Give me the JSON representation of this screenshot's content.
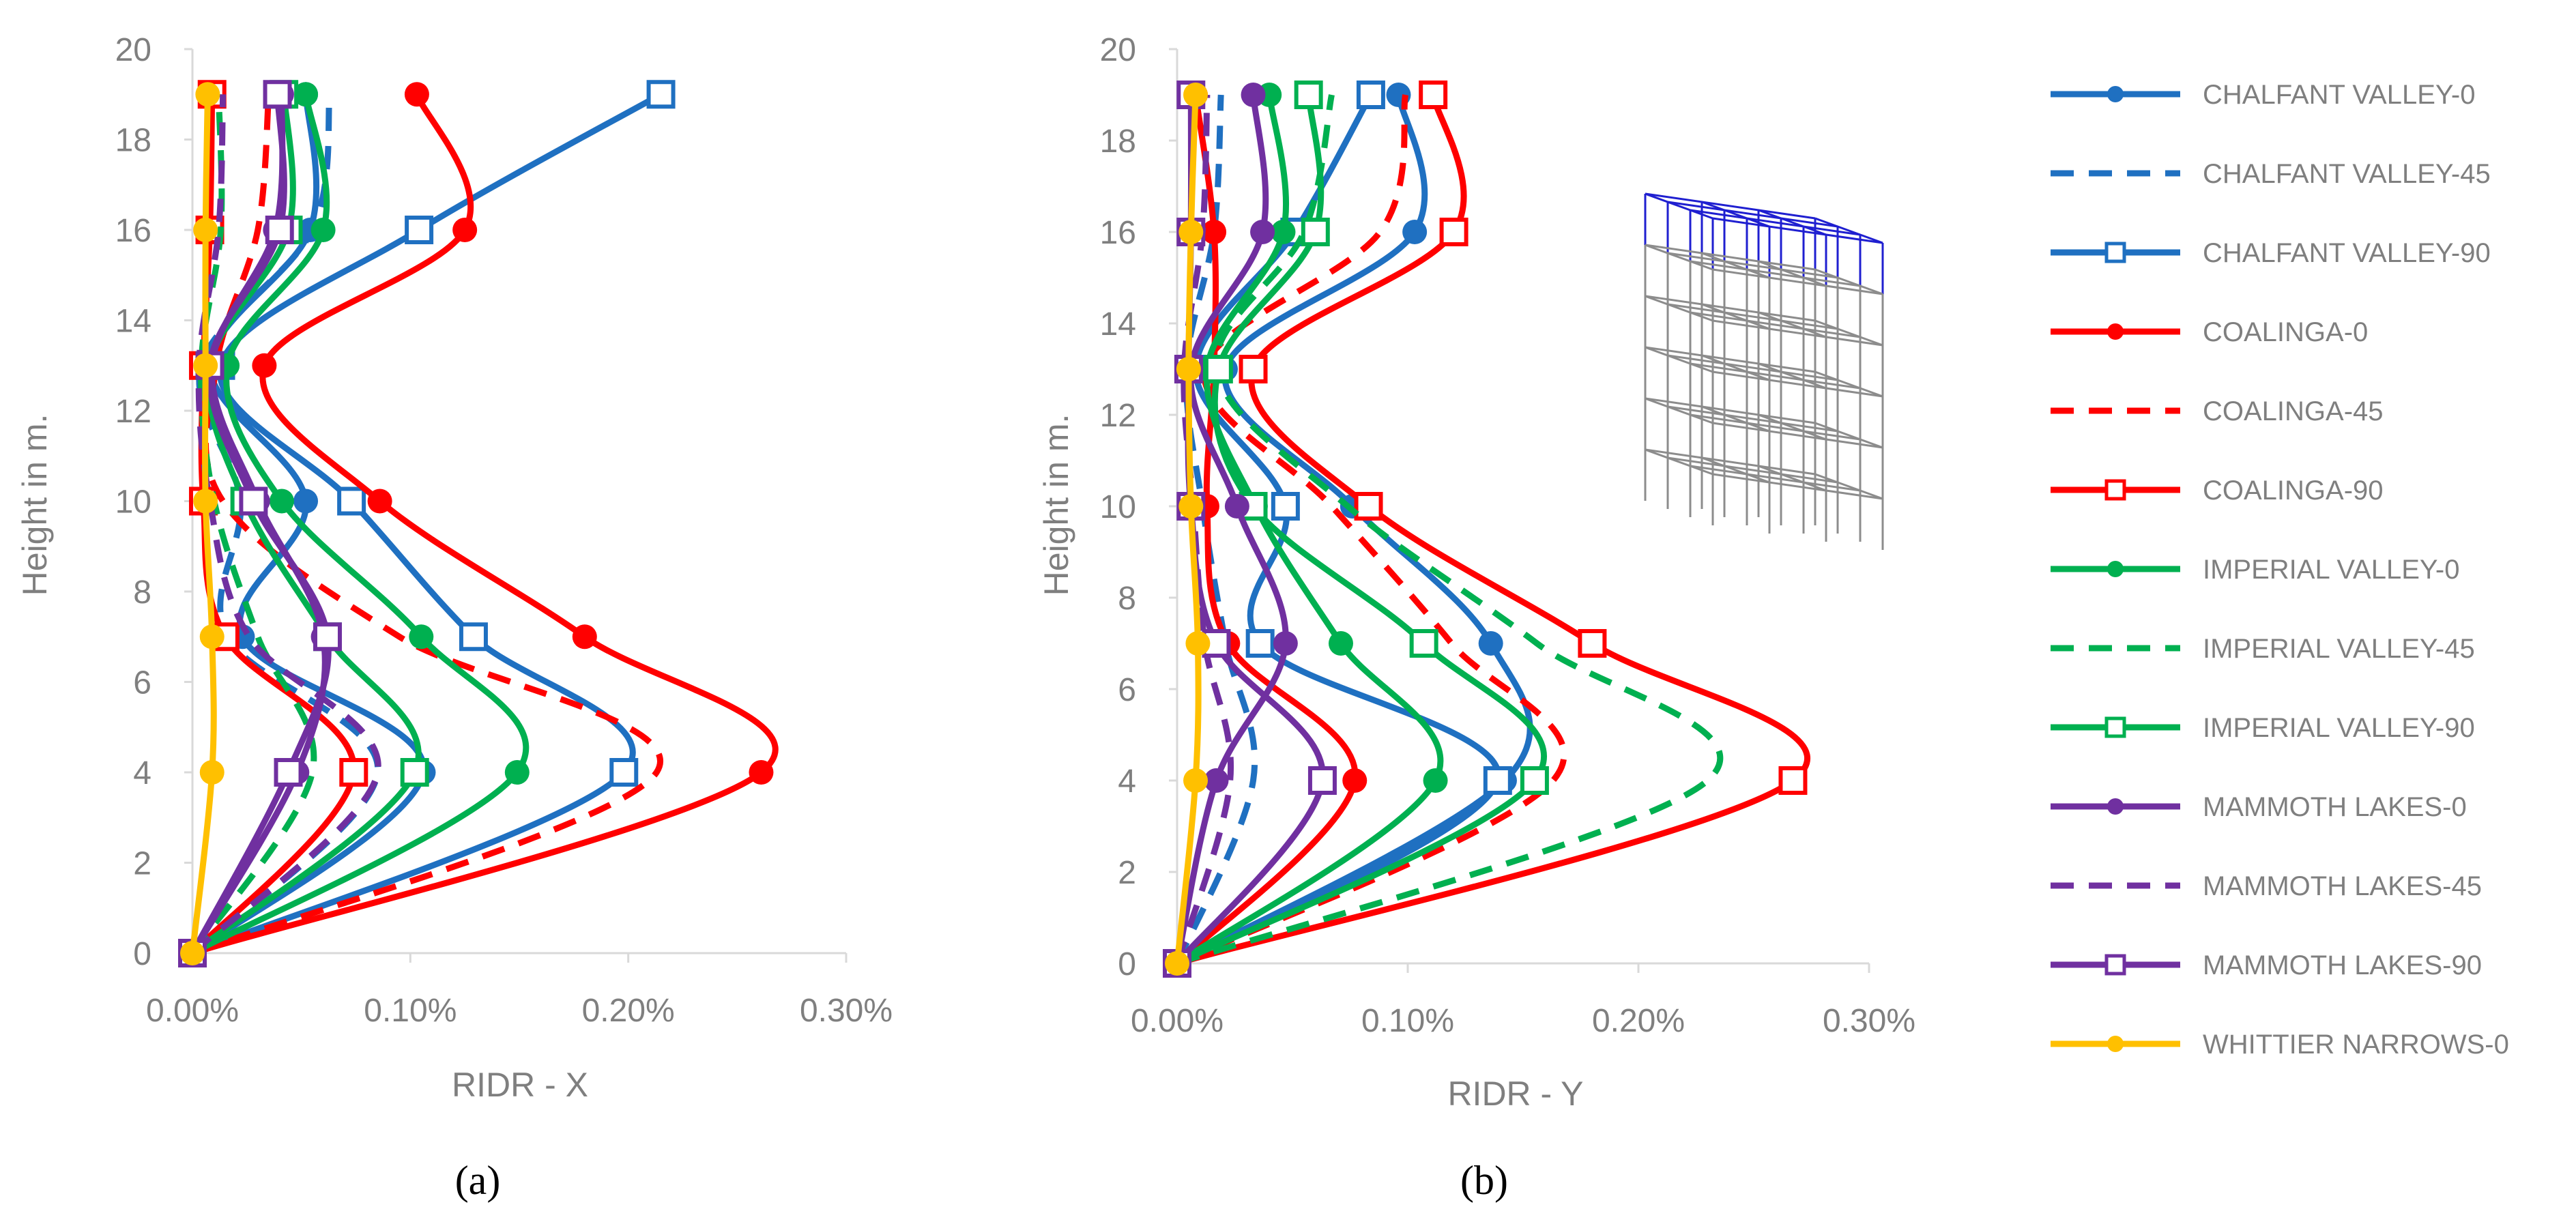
{
  "legend": [
    {
      "name": "CHALFANT VALLEY-0",
      "color": "#1f70c1",
      "dash": "solid",
      "marker": "circle"
    },
    {
      "name": "CHALFANT VALLEY-45",
      "color": "#1f70c1",
      "dash": "dashed",
      "marker": "none"
    },
    {
      "name": "CHALFANT VALLEY-90",
      "color": "#1f70c1",
      "dash": "solid",
      "marker": "square-open"
    },
    {
      "name": "COALINGA-0",
      "color": "#ff0000",
      "dash": "solid",
      "marker": "circle"
    },
    {
      "name": "COALINGA-45",
      "color": "#ff0000",
      "dash": "dashed",
      "marker": "none"
    },
    {
      "name": "COALINGA-90",
      "color": "#ff0000",
      "dash": "solid",
      "marker": "square-open"
    },
    {
      "name": "IMPERIAL VALLEY-0",
      "color": "#00b050",
      "dash": "solid",
      "marker": "circle"
    },
    {
      "name": "IMPERIAL VALLEY-45",
      "color": "#00b050",
      "dash": "dashed",
      "marker": "none"
    },
    {
      "name": "IMPERIAL VALLEY-90",
      "color": "#00b050",
      "dash": "solid",
      "marker": "square-open"
    },
    {
      "name": "MAMMOTH LAKES-0",
      "color": "#7030a0",
      "dash": "solid",
      "marker": "circle"
    },
    {
      "name": "MAMMOTH LAKES-45",
      "color": "#7030a0",
      "dash": "dashed",
      "marker": "none"
    },
    {
      "name": "MAMMOTH LAKES-90",
      "color": "#7030a0",
      "dash": "solid",
      "marker": "square-open"
    },
    {
      "name": "WHITTIER NARROWS-0",
      "color": "#ffc000",
      "dash": "solid",
      "marker": "circle"
    }
  ],
  "chart_data": [
    {
      "type": "line",
      "panel_label": "(a)",
      "xlabel": "RIDR - X",
      "ylabel": "Height in m.",
      "xlim": [
        0,
        0.3
      ],
      "ylim": [
        0,
        20
      ],
      "xticks": [
        0,
        0.1,
        0.2,
        0.3
      ],
      "xtick_labels": [
        "0.00%",
        "0.10%",
        "0.20%",
        "0.30%"
      ],
      "yticks": [
        0,
        2,
        4,
        6,
        8,
        10,
        12,
        14,
        16,
        18,
        20
      ],
      "y": [
        0,
        4,
        7,
        10,
        13,
        16,
        19
      ],
      "series": [
        {
          "name": "CHALFANT VALLEY-0",
          "x": [
            0,
            0.106,
            0.023,
            0.052,
            0.008,
            0.054,
            0.052
          ]
        },
        {
          "name": "CHALFANT VALLEY-45",
          "x": [
            0,
            0.085,
            0.016,
            0.022,
            0.004,
            0.055,
            0.063
          ]
        },
        {
          "name": "CHALFANT VALLEY-90",
          "x": [
            0,
            0.198,
            0.129,
            0.073,
            0.013,
            0.104,
            0.215
          ]
        },
        {
          "name": "COALINGA-0",
          "x": [
            0,
            0.261,
            0.18,
            0.086,
            0.033,
            0.125,
            0.103
          ]
        },
        {
          "name": "COALINGA-45",
          "x": [
            0,
            0.213,
            0.095,
            0.014,
            0.011,
            0.03,
            0.035
          ]
        },
        {
          "name": "COALINGA-90",
          "x": [
            0,
            0.074,
            0.015,
            0.005,
            0.005,
            0.008,
            0.009
          ]
        },
        {
          "name": "IMPERIAL VALLEY-0",
          "x": [
            0,
            0.149,
            0.105,
            0.041,
            0.016,
            0.06,
            0.052
          ]
        },
        {
          "name": "IMPERIAL VALLEY-45",
          "x": [
            0,
            0.055,
            0.03,
            0.01,
            0.004,
            0.013,
            0.012
          ]
        },
        {
          "name": "IMPERIAL VALLEY-90",
          "x": [
            0,
            0.102,
            0.062,
            0.024,
            0.008,
            0.044,
            0.042
          ]
        },
        {
          "name": "MAMMOTH LAKES-0",
          "x": [
            0,
            0.048,
            0.06,
            0.03,
            0.009,
            0.038,
            0.041
          ]
        },
        {
          "name": "MAMMOTH LAKES-45",
          "x": [
            0,
            0.085,
            0.026,
            0.008,
            0.003,
            0.012,
            0.014
          ]
        },
        {
          "name": "MAMMOTH LAKES-90",
          "x": [
            0,
            0.044,
            0.062,
            0.028,
            0.008,
            0.04,
            0.039
          ]
        },
        {
          "name": "WHITTIER NARROWS-0",
          "x": [
            0,
            0.009,
            0.009,
            0.006,
            0.006,
            0.006,
            0.007
          ]
        }
      ]
    },
    {
      "type": "line",
      "panel_label": "(b)",
      "xlabel": "RIDR - Y",
      "ylabel": "Height in m.",
      "xlim": [
        0,
        0.3
      ],
      "ylim": [
        0,
        20
      ],
      "xticks": [
        0,
        0.1,
        0.2,
        0.3
      ],
      "xtick_labels": [
        "0.00%",
        "0.10%",
        "0.20%",
        "0.30%"
      ],
      "yticks": [
        0,
        2,
        4,
        6,
        8,
        10,
        12,
        14,
        16,
        18,
        20
      ],
      "y": [
        0,
        4,
        7,
        10,
        13,
        16,
        19
      ],
      "series": [
        {
          "name": "CHALFANT VALLEY-0",
          "x": [
            0,
            0.142,
            0.136,
            0.076,
            0.021,
            0.103,
            0.096
          ]
        },
        {
          "name": "CHALFANT VALLEY-45",
          "x": [
            0,
            0.033,
            0.021,
            0.011,
            0.004,
            0.016,
            0.019
          ]
        },
        {
          "name": "CHALFANT VALLEY-90",
          "x": [
            0,
            0.139,
            0.036,
            0.047,
            0.008,
            0.051,
            0.084
          ]
        },
        {
          "name": "COALINGA-0",
          "x": [
            0,
            0.077,
            0.022,
            0.013,
            0.016,
            0.016,
            0.008
          ]
        },
        {
          "name": "COALINGA-45",
          "x": [
            0,
            0.163,
            0.119,
            0.067,
            0.012,
            0.088,
            0.099
          ]
        },
        {
          "name": "COALINGA-90",
          "x": [
            0,
            0.267,
            0.18,
            0.083,
            0.033,
            0.12,
            0.111
          ]
        },
        {
          "name": "IMPERIAL VALLEY-0",
          "x": [
            0,
            0.112,
            0.071,
            0.034,
            0.013,
            0.046,
            0.04
          ]
        },
        {
          "name": "IMPERIAL VALLEY-45",
          "x": [
            0,
            0.23,
            0.156,
            0.074,
            0.017,
            0.055,
            0.067
          ]
        },
        {
          "name": "IMPERIAL VALLEY-90",
          "x": [
            0,
            0.155,
            0.107,
            0.033,
            0.018,
            0.06,
            0.057
          ]
        },
        {
          "name": "MAMMOTH LAKES-0",
          "x": [
            0,
            0.017,
            0.047,
            0.026,
            0.006,
            0.037,
            0.033
          ]
        },
        {
          "name": "MAMMOTH LAKES-45",
          "x": [
            0,
            0.023,
            0.012,
            0.007,
            0.003,
            0.011,
            0.013
          ]
        },
        {
          "name": "MAMMOTH LAKES-90",
          "x": [
            0,
            0.063,
            0.017,
            0.006,
            0.005,
            0.006,
            0.006
          ]
        },
        {
          "name": "WHITTIER NARROWS-0",
          "x": [
            0,
            0.008,
            0.009,
            0.006,
            0.005,
            0.006,
            0.008
          ]
        }
      ]
    }
  ]
}
